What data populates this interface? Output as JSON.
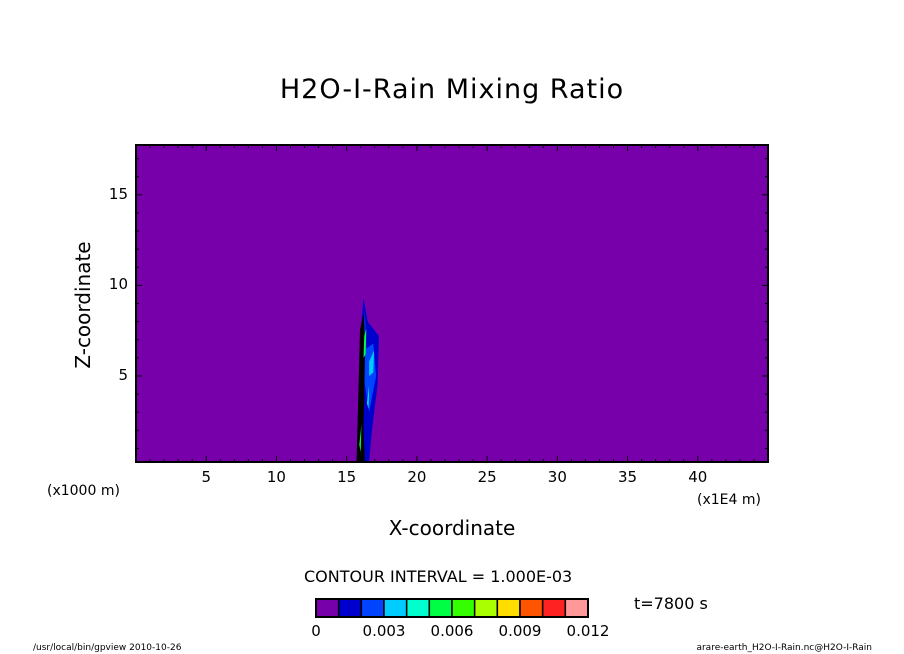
{
  "title": "H2O-I-Rain Mixing Ratio",
  "chart_data": {
    "type": "heatmap",
    "subtype": "filled-contour",
    "title": "H2O-I-Rain Mixing Ratio",
    "xlabel": "X-coordinate",
    "ylabel": "Z-coordinate",
    "x_unit": "(x1E4 m)",
    "y_unit": "(x1000 m)",
    "xlim": [
      0,
      45
    ],
    "ylim": [
      0.25,
      17.75
    ],
    "x_ticks": [
      "5",
      "10",
      "15",
      "20",
      "25",
      "30",
      "35",
      "40"
    ],
    "y_ticks": [
      "5",
      "10",
      "15"
    ],
    "background_value": 0,
    "feature": "narrow column of rain centered near x=16.2, z from 0.25 to ~9.3, values up to ~0.006",
    "contour_interval": "CONTOUR INTERVAL = 1.000E-03",
    "colorbar": {
      "levels": [
        0,
        0.001,
        0.002,
        0.003,
        0.004,
        0.005,
        0.006,
        0.007,
        0.008,
        0.009,
        0.01,
        0.011,
        0.012
      ],
      "colors": [
        "#7700aa",
        "#0000cc",
        "#0044ff",
        "#00ccff",
        "#00ffcc",
        "#00ff44",
        "#33ff00",
        "#aaff00",
        "#ffdd00",
        "#ff5500",
        "#ff2222",
        "#ff9999"
      ],
      "labels": [
        "0",
        "0.003",
        "0.006",
        "0.009",
        "0.012"
      ]
    },
    "time_label": "t=7800 s"
  },
  "footer": {
    "left": "/usr/local/bin/gpview  2010-10-26",
    "right": "arare-earth_H2O-I-Rain.nc@H2O-I-Rain"
  }
}
